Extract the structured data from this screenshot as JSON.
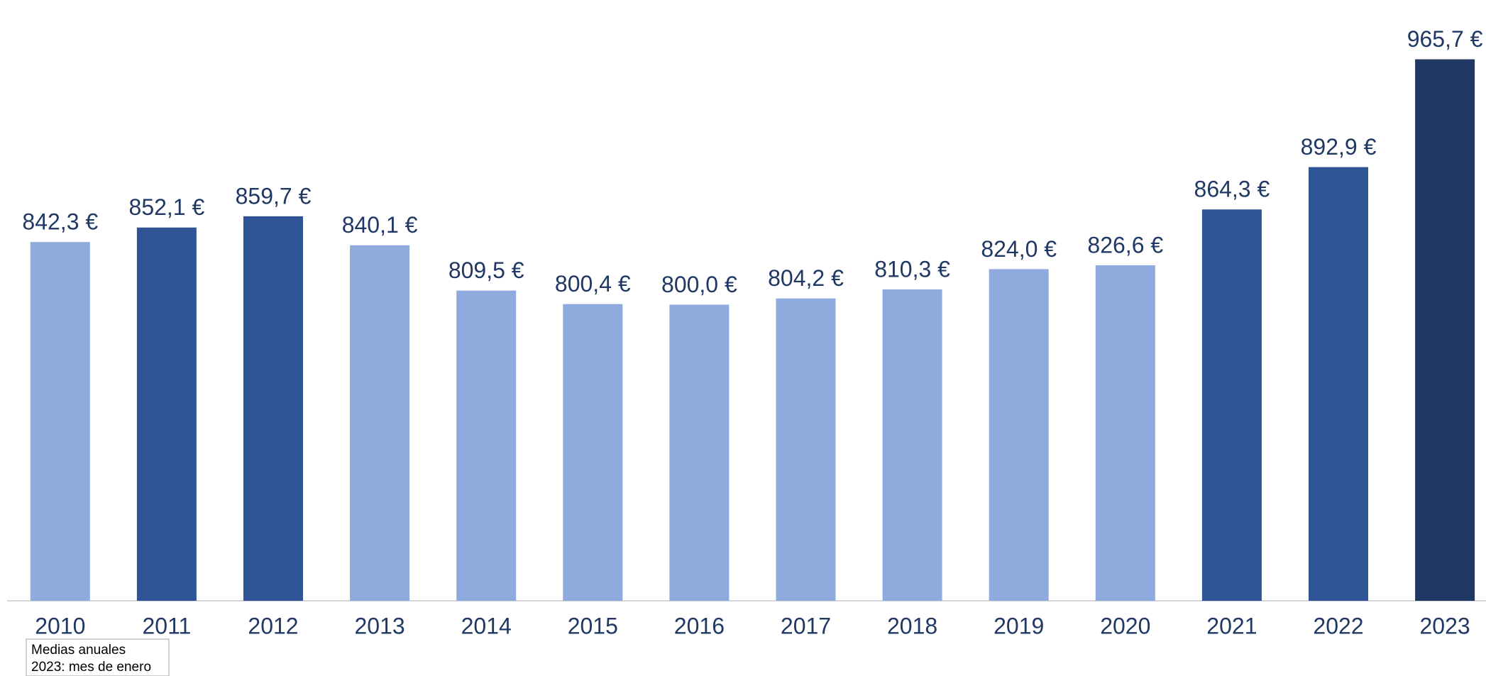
{
  "chart_data": {
    "type": "bar",
    "categories": [
      "2010",
      "2011",
      "2012",
      "2013",
      "2014",
      "2015",
      "2016",
      "2017",
      "2018",
      "2019",
      "2020",
      "2021",
      "2022",
      "2023"
    ],
    "values": [
      842.3,
      852.1,
      859.7,
      840.1,
      809.5,
      800.4,
      800.0,
      804.2,
      810.3,
      824.0,
      826.6,
      864.3,
      892.9,
      965.7
    ],
    "value_labels": [
      "842,3 €",
      "852,1 €",
      "859,7 €",
      "840,1 €",
      "809,5 €",
      "800,4 €",
      "800,0 €",
      "804,2 €",
      "810,3 €",
      "824,0 €",
      "826,6 €",
      "864,3 €",
      "892,9 €",
      "965,7 €"
    ],
    "colors": [
      "#8faadc",
      "#2f5597",
      "#2f5597",
      "#8faadc",
      "#8faadc",
      "#8faadc",
      "#8faadc",
      "#8faadc",
      "#8faadc",
      "#8faadc",
      "#8faadc",
      "#2f5597",
      "#2f5597",
      "#203864"
    ],
    "ylim": [
      600,
      1000
    ],
    "grid": false,
    "note": [
      "Medias anuales",
      "2023: mes de enero"
    ]
  }
}
